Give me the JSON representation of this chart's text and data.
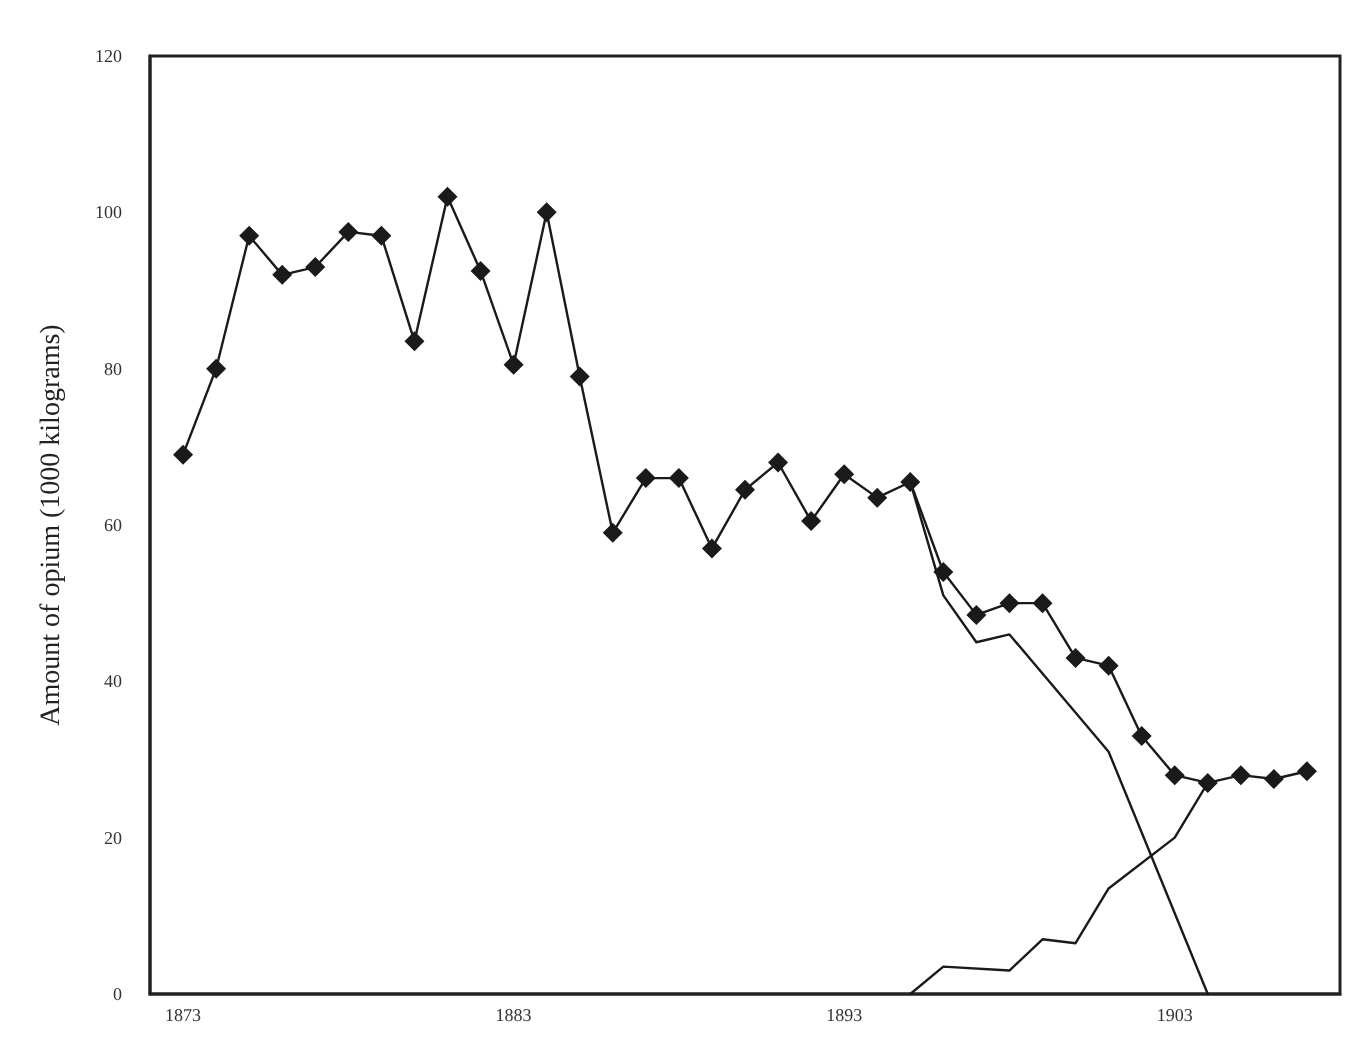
{
  "chart_data": {
    "type": "line",
    "ylabel": "Amount of opium (1000 kilograms)",
    "xlim": [
      1872,
      1908
    ],
    "xticks": [
      1873,
      1883,
      1893,
      1903
    ],
    "ylim": [
      0,
      120
    ],
    "yticks": [
      0,
      20,
      40,
      60,
      80,
      100,
      120
    ],
    "series": [
      {
        "color": "#1a1a1a",
        "marker": "diamond",
        "x": [
          1873,
          1874,
          1875,
          1876,
          1877,
          1878,
          1879,
          1880,
          1881,
          1882,
          1883,
          1884,
          1885,
          1886,
          1887,
          1888,
          1889,
          1890,
          1891,
          1892,
          1893,
          1894,
          1895,
          1896,
          1897,
          1898,
          1899,
          1900,
          1901,
          1902,
          1903,
          1904,
          1905,
          1906,
          1907
        ],
        "values": [
          69,
          80,
          97,
          92,
          93,
          97.5,
          97,
          83.5,
          102,
          92.5,
          80.5,
          100,
          79,
          59,
          66,
          66,
          57,
          64.5,
          68,
          60.5,
          66.5,
          63.5,
          65.5,
          54,
          48.5,
          50,
          50,
          43,
          42,
          33,
          28,
          27,
          28,
          27.5,
          28.5
        ]
      },
      {
        "color": "#1a1a1a",
        "marker": "none",
        "x": [
          1895,
          1896,
          1897,
          1898,
          1899,
          1901,
          1904
        ],
        "values": [
          65.5,
          51,
          45,
          46,
          41,
          31,
          0
        ]
      },
      {
        "color": "#1a1a1a",
        "marker": "none",
        "x": [
          1895,
          1896,
          1898,
          1899,
          1900,
          1901,
          1903,
          1904
        ],
        "values": [
          0,
          3.5,
          3,
          7,
          6.5,
          13.5,
          20,
          27
        ]
      }
    ]
  }
}
